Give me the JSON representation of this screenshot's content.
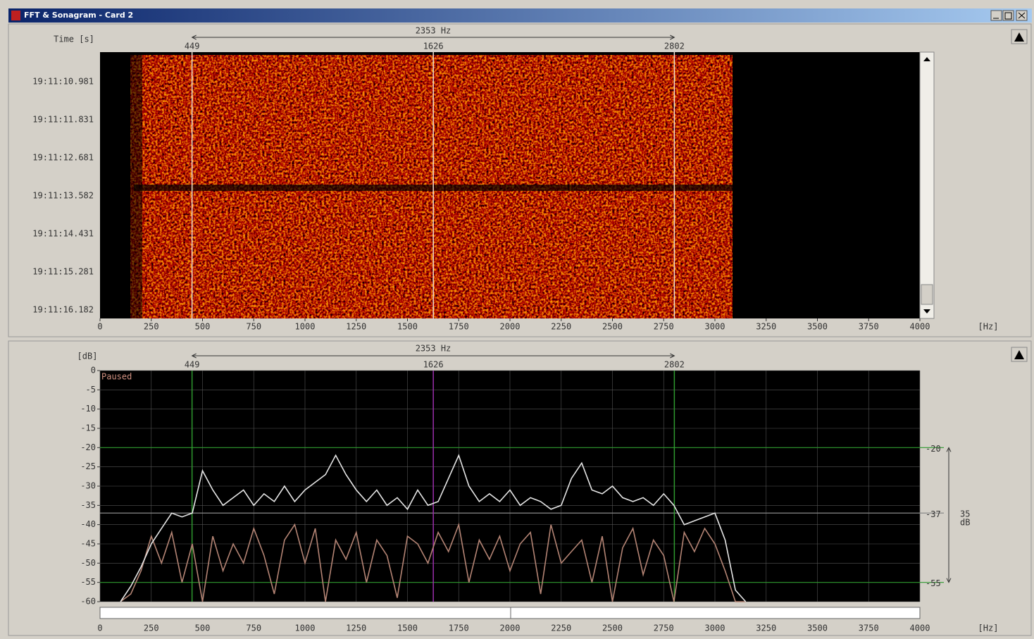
{
  "window": {
    "title": "FFT & Sonagram - Card 2"
  },
  "sonagram": {
    "time_label": "Time [s]",
    "span_label": "2353 Hz",
    "markers": [
      449,
      1626,
      2802
    ],
    "times": [
      "19:11:10.981",
      "19:11:11.831",
      "19:11:12.681",
      "19:11:13.582",
      "19:11:14.431",
      "19:11:15.281",
      "19:11:16.182"
    ],
    "xlim": [
      0,
      4000
    ],
    "xticks": [
      0,
      250,
      500,
      750,
      1000,
      1250,
      1500,
      1750,
      2000,
      2250,
      2500,
      2750,
      3000,
      3250,
      3500,
      3750,
      4000
    ],
    "x_unit": "[Hz]"
  },
  "chart_data": {
    "type": "line",
    "ylabel": "[dB]",
    "status": "Paused",
    "span_label": "2353 Hz",
    "x_unit": "[Hz]",
    "markers": [
      449,
      1626,
      2802
    ],
    "marker_colors": [
      "#2e9a2e",
      "#9a2eaa",
      "#2e9a2e"
    ],
    "ref_levels": [
      -20,
      -37,
      -55
    ],
    "ref_colors": [
      "#2e9a2e",
      "#8a8a8a",
      "#2e9a2e"
    ],
    "range_value": 35,
    "range_unit": "dB",
    "xlim": [
      0,
      4000
    ],
    "xticks": [
      0,
      250,
      500,
      750,
      1000,
      1250,
      1500,
      1750,
      2000,
      2250,
      2500,
      2750,
      3000,
      3250,
      3500,
      3750,
      4000
    ],
    "ylim": [
      -60,
      0
    ],
    "yticks": [
      0,
      -5,
      -10,
      -15,
      -20,
      -25,
      -30,
      -35,
      -40,
      -45,
      -50,
      -55,
      -60
    ],
    "grid": true,
    "x": [
      100,
      150,
      200,
      250,
      300,
      350,
      400,
      450,
      500,
      550,
      600,
      650,
      700,
      750,
      800,
      850,
      900,
      950,
      1000,
      1050,
      1100,
      1150,
      1200,
      1250,
      1300,
      1350,
      1400,
      1450,
      1500,
      1550,
      1600,
      1650,
      1700,
      1750,
      1800,
      1850,
      1900,
      1950,
      2000,
      2050,
      2100,
      2150,
      2200,
      2250,
      2300,
      2350,
      2400,
      2450,
      2500,
      2550,
      2600,
      2650,
      2700,
      2750,
      2800,
      2850,
      2900,
      2950,
      3000,
      3050,
      3100,
      3150
    ],
    "series": [
      {
        "color": "#e6e6e6",
        "values": [
          -60,
          -56,
          -51,
          -45,
          -41,
          -37,
          -38,
          -37,
          -26,
          -31,
          -35,
          -33,
          -31,
          -35,
          -32,
          -34,
          -30,
          -34,
          -31,
          -29,
          -27,
          -22,
          -27,
          -31,
          -34,
          -31,
          -35,
          -33,
          -36,
          -31,
          -35,
          -34,
          -28,
          -22,
          -30,
          -34,
          -32,
          -34,
          -31,
          -35,
          -33,
          -34,
          -36,
          -35,
          -28,
          -24,
          -31,
          -32,
          -30,
          -33,
          -34,
          -33,
          -35,
          -32,
          -35,
          -40,
          -39,
          -38,
          -37,
          -44,
          -57,
          -60
        ]
      },
      {
        "color": "#b48474",
        "values": [
          -60,
          -58,
          -52,
          -43,
          -50,
          -42,
          -55,
          -45,
          -60,
          -43,
          -52,
          -45,
          -50,
          -41,
          -48,
          -58,
          -44,
          -40,
          -50,
          -41,
          -60,
          -44,
          -49,
          -42,
          -55,
          -44,
          -48,
          -59,
          -43,
          -45,
          -50,
          -42,
          -47,
          -40,
          -55,
          -44,
          -49,
          -43,
          -52,
          -45,
          -42,
          -58,
          -40,
          -50,
          -47,
          -44,
          -55,
          -43,
          -60,
          -46,
          -41,
          -53,
          -44,
          -48,
          -60,
          -42,
          -47,
          -41,
          -45,
          -52,
          -60,
          -60
        ]
      }
    ]
  }
}
